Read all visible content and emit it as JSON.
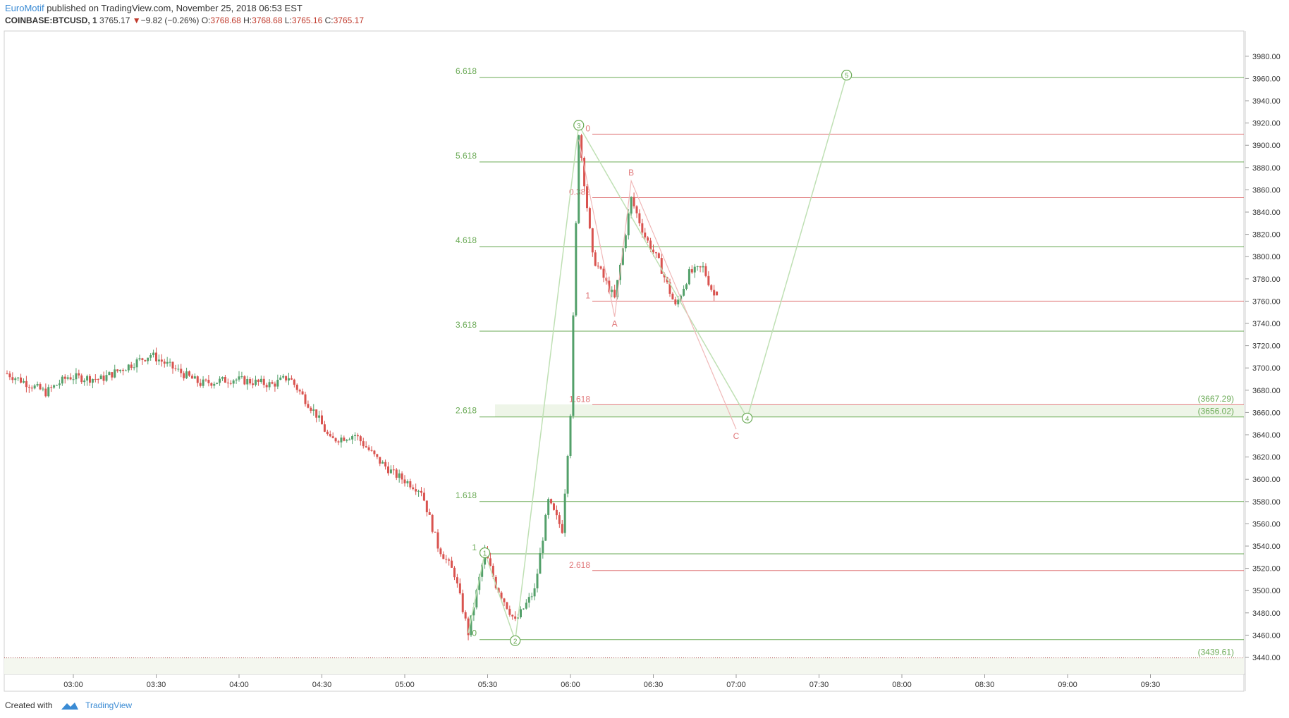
{
  "header": {
    "author": "EuroMotif",
    "published": "published on TradingView.com, November 25, 2018 06:53 EST",
    "symbol": "COINBASE:BTCUSD, 1",
    "price": "3765.17",
    "change_arrow": "▼",
    "change": "−9.82 (−0.26%)",
    "o_label": "O:",
    "o": "3768.68",
    "h_label": "H:",
    "h": "3768.68",
    "l_label": "L:",
    "l": "3765.16",
    "c_label": "C:",
    "c": "3765.17"
  },
  "footer": {
    "created": "Created with",
    "brand": "TradingView"
  },
  "colors": {
    "up": "#53a06a",
    "down": "#d9534f",
    "green_fib": "#6aaa55",
    "red_fib": "#e0787a",
    "zone": "#eef5e8"
  },
  "chart_data": {
    "type": "candlestick",
    "ylim": [
      3430,
      3990
    ],
    "y_ticks": [
      3440,
      3460,
      3480,
      3500,
      3520,
      3540,
      3560,
      3580,
      3600,
      3620,
      3640,
      3660,
      3680,
      3700,
      3720,
      3740,
      3760,
      3780,
      3800,
      3820,
      3840,
      3860,
      3880,
      3900,
      3920,
      3940,
      3960,
      3980
    ],
    "y_tick_labels": [
      "3440.00",
      "3460.00",
      "3480.00",
      "3500.00",
      "3520.00",
      "3540.00",
      "3560.00",
      "3580.00",
      "3600.00",
      "3620.00",
      "3640.00",
      "3660.00",
      "3680.00",
      "3700.00",
      "3720.00",
      "3740.00",
      "3760.00",
      "3780.00",
      "3800.00",
      "3820.00",
      "3840.00",
      "3860.00",
      "3880.00",
      "3900.00",
      "3920.00",
      "3940.00",
      "3960.00",
      "3980.00"
    ],
    "x_ticks": [
      "03:00",
      "03:30",
      "04:00",
      "04:30",
      "05:00",
      "05:30",
      "06:00",
      "06:30",
      "07:00",
      "07:30",
      "08:00",
      "08:30",
      "09:00",
      "09:30"
    ],
    "price_path": [
      [
        "02:36",
        3695
      ],
      [
        "02:50",
        3678
      ],
      [
        "02:58",
        3692
      ],
      [
        "03:10",
        3690
      ],
      [
        "03:20",
        3702
      ],
      [
        "03:28",
        3712
      ],
      [
        "03:36",
        3700
      ],
      [
        "03:46",
        3686
      ],
      [
        "03:58",
        3690
      ],
      [
        "04:12",
        3685
      ],
      [
        "04:18",
        3692
      ],
      [
        "04:28",
        3658
      ],
      [
        "04:33",
        3635
      ],
      [
        "04:42",
        3640
      ],
      [
        "04:50",
        3618
      ],
      [
        "04:56",
        3605
      ],
      [
        "05:06",
        3590
      ],
      [
        "05:12",
        3540
      ],
      [
        "05:18",
        3515
      ],
      [
        "05:23",
        3462
      ],
      [
        "05:29",
        3535
      ],
      [
        "05:33",
        3505
      ],
      [
        "05:40",
        3472
      ],
      [
        "05:47",
        3500
      ],
      [
        "05:52",
        3580
      ],
      [
        "05:57",
        3555
      ],
      [
        "06:00",
        3660
      ],
      [
        "06:03",
        3912
      ],
      [
        "06:08",
        3800
      ],
      [
        "06:16",
        3762
      ],
      [
        "06:22",
        3852
      ],
      [
        "06:27",
        3818
      ],
      [
        "06:32",
        3795
      ],
      [
        "06:38",
        3755
      ],
      [
        "06:43",
        3785
      ],
      [
        "06:48",
        3790
      ],
      [
        "06:52",
        3765
      ]
    ],
    "last_candle": {
      "time": "06:53",
      "open": 3768.68,
      "high": 3768.68,
      "low": 3765.16,
      "close": 3765.17
    },
    "fib_green": [
      {
        "label": "0",
        "price": 3456
      },
      {
        "label": "1",
        "price": 3533
      },
      {
        "label": "1.618",
        "price": 3580
      },
      {
        "label": "2.618",
        "price": 3656
      },
      {
        "label": "3.618",
        "price": 3733
      },
      {
        "label": "4.618",
        "price": 3809
      },
      {
        "label": "5.618",
        "price": 3885
      },
      {
        "label": "6.618",
        "price": 3961
      }
    ],
    "fib_red": [
      {
        "label": "0",
        "price": 3910
      },
      {
        "label": "0.382",
        "price": 3853
      },
      {
        "label": "1",
        "price": 3760
      },
      {
        "label": "1.618",
        "price": 3667
      },
      {
        "label": "2.618",
        "price": 3518
      }
    ],
    "zone": {
      "from": 3656.02,
      "to": 3667.29
    },
    "price_labels": [
      {
        "text": "(3667.29)",
        "price": 3667.29
      },
      {
        "text": "(3656.02)",
        "price": 3656.02
      },
      {
        "text": "(3439.61)",
        "price": 3439.61
      }
    ],
    "wave_points": [
      {
        "label": "1",
        "time": "05:29",
        "price": 3534
      },
      {
        "label": "2",
        "time": "05:40",
        "price": 3455
      },
      {
        "label": "3",
        "time": "06:03",
        "price": 3918
      },
      {
        "label": "4",
        "time": "07:04",
        "price": 3655
      },
      {
        "label": "5",
        "time": "07:40",
        "price": 3963
      }
    ],
    "abc_points": [
      {
        "label": "A",
        "time": "06:16",
        "price": 3746
      },
      {
        "label": "B",
        "time": "06:22",
        "price": 3868
      },
      {
        "label": "C",
        "time": "07:00",
        "price": 3645
      }
    ]
  }
}
